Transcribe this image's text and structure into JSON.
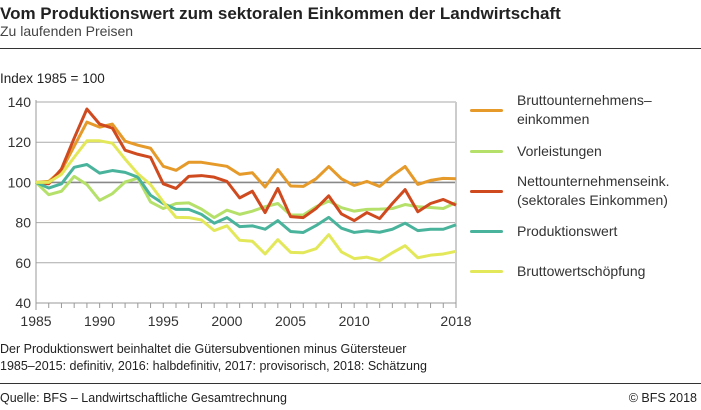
{
  "header": {
    "title": "Vom Produktionswert zum sektoralen Einkommen der Landwirtschaft",
    "subtitle": "Zu laufenden Preisen"
  },
  "footer": {
    "notes": [
      "Der Produktionswert beinhaltet die Gütersubventionen minus Gütersteuer",
      "1985–2015: definitiv, 2016: halbdefinitiv, 2017: provisorisch, 2018: Schätzung"
    ],
    "source": "Quelle: BFS – Landwirtschaftliche Gesamtrechnung",
    "copyright": "© BFS  2018"
  },
  "chart_data": {
    "type": "line",
    "ylabel": "Index 1985 = 100",
    "xlim": [
      1985,
      2018
    ],
    "ylim": [
      40,
      140
    ],
    "yticks": [
      40,
      60,
      80,
      100,
      120,
      140
    ],
    "xticks": [
      1985,
      1990,
      1995,
      2000,
      2005,
      2010,
      2018
    ],
    "grid": true,
    "legend": "right",
    "x": [
      1985,
      1986,
      1987,
      1988,
      1989,
      1990,
      1991,
      1992,
      1993,
      1994,
      1995,
      1996,
      1997,
      1998,
      1999,
      2000,
      2001,
      2002,
      2003,
      2004,
      2005,
      2006,
      2007,
      2008,
      2009,
      2010,
      2011,
      2012,
      2013,
      2014,
      2015,
      2016,
      2017,
      2018
    ],
    "series": [
      {
        "name": "Bruttounternehmens–\neinkommen",
        "color": "#e59a2a",
        "values": [
          100,
          100.5,
          106,
          118,
          130,
          127.5,
          129,
          120.5,
          118.5,
          117,
          108,
          106,
          110,
          110,
          109,
          108,
          104,
          104.8,
          97.7,
          106.4,
          98.2,
          98,
          101.8,
          107.9,
          101.8,
          98.5,
          100.5,
          98,
          103.4,
          107.9,
          99,
          101,
          102,
          101.8
        ]
      },
      {
        "name": "Vorleistungen",
        "color": "#b5e06a",
        "values": [
          100,
          93.9,
          95.6,
          103,
          98.9,
          91.1,
          94.4,
          100.2,
          102.1,
          90.3,
          87,
          89.5,
          89.8,
          86.7,
          82.5,
          86.2,
          84.1,
          85.7,
          87.9,
          89.5,
          83.8,
          83.8,
          87.9,
          90.7,
          87.4,
          85.7,
          86.6,
          86.7,
          87,
          89,
          87.9,
          87.5,
          87,
          90
        ]
      },
      {
        "name": "Nettounternehmenseink.\n(sektorales Einkommen)",
        "color": "#d04a1f",
        "values": [
          100,
          99.3,
          106.7,
          122,
          136.5,
          129,
          127,
          116,
          114,
          112.5,
          99.3,
          97,
          103,
          103.4,
          102.6,
          100.5,
          92.3,
          95.6,
          85,
          97,
          83,
          82.5,
          87,
          93.3,
          84.3,
          81,
          85,
          82,
          89.5,
          96.4,
          85.4,
          89.5,
          91.5,
          88.7
        ]
      },
      {
        "name": "Produktionswert",
        "color": "#4ab39b",
        "values": [
          100,
          97.2,
          99.3,
          107.5,
          108.9,
          104.6,
          105.9,
          105,
          102.6,
          93.6,
          89.5,
          86.6,
          86.6,
          84.1,
          79.7,
          82.5,
          78,
          78.4,
          76.7,
          81,
          75.6,
          75.1,
          78.5,
          82.6,
          77.2,
          75.1,
          75.9,
          75.2,
          76.7,
          79.7,
          76,
          76.7,
          76.7,
          78.9
        ]
      },
      {
        "name": "Bruttowertschöpfung",
        "color": "#e3e85a",
        "values": [
          100,
          100,
          104,
          112.5,
          120.7,
          120.7,
          119.5,
          111.6,
          104.3,
          98.9,
          90.3,
          82.6,
          82.5,
          81.3,
          76,
          78.4,
          71.2,
          70.7,
          64.4,
          71.5,
          65.2,
          65,
          67,
          74,
          65.4,
          62.1,
          62.8,
          61.1,
          65,
          68.5,
          62.5,
          63.8,
          64.4,
          65.7
        ]
      }
    ]
  }
}
